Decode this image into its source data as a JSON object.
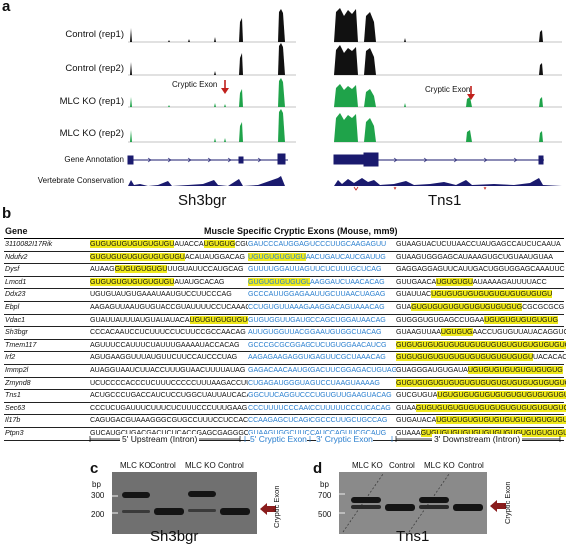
{
  "panel_a": {
    "letter": "a",
    "track_labels": [
      "Control (rep1)",
      "Control (rep2)",
      "MLC KO (rep1)",
      "MLC KO (rep2)",
      "Gene Annotation",
      "Vertebrate Conservation"
    ],
    "cryptic_label_left": "Cryptic Exon",
    "cryptic_label_right": "Cryptic Exon",
    "gene_left": "Sh3bgr",
    "gene_right": "Tns1",
    "colors": {
      "control": "#111111",
      "ko": "#1fa34a",
      "annotation": "#1a1a6e",
      "arrow": "#c0201c"
    }
  },
  "panel_b": {
    "letter": "b",
    "header_gene": "Gene",
    "title": "Muscle Specific Cryptic Exons (Mouse, mm9)",
    "rows": [
      {
        "gene": "3110082I17Rik",
        "up": "GUGUGUGUGUGUGUGUAUACCAUGUGUGCGUAG",
        "c5": "GAUCCCAUGGAGCUC...",
        "c3": "UCCCUUGCAAGAGUU",
        "dn": "GUAAGUACUCUUAACCUAUGAGCCAUCUCAAUA"
      },
      {
        "gene": "Ndufv2",
        "up": "GUGUGUGUGUGUGUGUGUACAUAUGGACAG",
        "c5": "UGUGUGUGUGUAUGU...",
        "c3": "ACUGAUCAUCGAUUG",
        "dn": "GUAAGUGGGAGCAUAAAGUGCUGUAAUGUAA"
      },
      {
        "gene": "Dysf",
        "up": "AUAAGGUGUGUGUGUUUGUAUUCCAUGCAG",
        "c5": "GUUUUGGAUUAGUAG...",
        "c3": "UUCUCUUUGCUCAG",
        "dn": "GAGGAGGAGUUCAUUGACUGGUGGAGCAAAUUC"
      },
      {
        "gene": "Lmcd1",
        "up": "GUGUGUGUGUGUGUGUAUAUGCACAG",
        "c5": "GUGUGUGUGUGUAAG...",
        "c3": "AAGGAUCUAACACAG",
        "dn": "GUUGAACAUGUGUGUAUAAAAGAUUUUACC"
      },
      {
        "gene": "Ddx23",
        "up": "UGUGUAUGUGAAAUAAUGUCCUUCCCAG",
        "c5": "GCCCAUUGGAGAAAU...",
        "c3": "AUUGCUUAACUAGAG",
        "dn": "GUAUUACUGUGUGUGUGUGUGUGUGUGUGU"
      },
      {
        "gene": "Ebpl",
        "up": "AAGAGUUAAUGUGUACCGUAUUUUCCUCAAAG",
        "c5": "CCUGUGUUAAAGAG...",
        "c3": "AAGGACAGUAAACAG",
        "dn": "GUAGUGUGUGUGUGUGUGUGUGUGCGCGCGCG"
      },
      {
        "gene": "Vdac1",
        "up": "GUAUUAUUUAUGUAUAUACAUGUGUGUGUGUGUG",
        "c5": "GUGUGGUUGAUGGAG...",
        "c3": "CCAGCUGGAUAACAG",
        "dn": "GUGGGUGUGAGCCUGAAUGUGUGUGUGUGUG"
      },
      {
        "gene": "Sh3bgr",
        "up": "CCCACAAUCCUCUUUCCUCUUCCGCCAACAG",
        "c5": "AUUGUGGUUACGGU...",
        "c3": "GAAUGUGGCUACAG",
        "dn": "GUAAGUUAAUGUGUGAACCUGUGUUAUACAGGUGUG"
      },
      {
        "gene": "Tmem117",
        "up": "AGUUUCCAUUUCUAUUUGAAAAUACCACAG",
        "c5": "GCCCGCGCGGAGGAG...",
        "c3": "CUCUGUGGAACAUCG",
        "dn": "GUGUGUGUGUGUGUGUGUGUGUGUGUGUGUGUGU"
      },
      {
        "gene": "Irf2",
        "up": "AGUGAAGGUUUAUGUUCUUCCAUCCCUAG",
        "c5": "AAGAGAAGAGGUGCU...",
        "c3": "GAGUUCGCUAAACAG",
        "dn": "GUGUGUGUGUGUGUGUGUGUGUGUGUUACACAC"
      },
      {
        "gene": "Immp2l",
        "up": "AUAGGUAAUCUUACCUUUGUAACUUUUAUAG",
        "c5": "GAGACAACAAUGGC...",
        "c3": "GACUUCGGAGACUGUAG",
        "dn": "GUAGGGAUGUGAUAUGUGUGUGUGUGUGUGUG"
      },
      {
        "gene": "Zmynd8",
        "up": "UCUCCCCACCCUCUUUCCCCCUUUAAGACCUU",
        "c5": "CUGAGAUGGGUACGC...",
        "c3": "GUCCUAAGUAAAAG",
        "dn": "GUGUGUGUGUGUGUGUGUGUGUGUGUGUGUGUGU"
      },
      {
        "gene": "Tns1",
        "up": "ACUGCCCUGACCAUCUCCUGGCUAUUAUCACAG",
        "c5": "GGCUUCAGGUCCUGC...",
        "c3": "CUGUGUUGAAGUACAG",
        "dn": "GUCGUGUAUGUGUGUGUGUGUGUGUGUGUGUGUG"
      },
      {
        "gene": "Sec63",
        "up": "CCCUCUGAUUUCUUUCUCUUUCCCUUUGAAG",
        "c5": "CCCUUUUCCCAACA...",
        "c3": "CCUUUUUCCCUCACAG",
        "dn": "GUAAGUGUGUGUGUGUGUGUGUGUGUGUGUGUG"
      },
      {
        "gene": "Il17b",
        "up": "CAGUGACGUAAAGGGCGUGCCUUUCCUCCACAG",
        "c5": "CCAAGAGCUCAGCAC...",
        "c3": "CGCCCUUGCUGCCAG",
        "dn": "GUGAUACAUGUGUGUGUGUGUGUGUGUGUGUGUG"
      },
      {
        "gene": "Ptpn3",
        "up": "GUCAUGCUGACGACUCUCACCGAGCGAGGGCGG",
        "c5": "GUAAGUGGCUUCCUU...",
        "c3": "CAUCCAGUUCGCAUG",
        "dn": "GUAAAGUGUGUGUGUGUGUGUGUGUGUGUGUGU"
      }
    ],
    "region_labels": [
      "5' Upstream (Intron)",
      "5' Cryptic Exon",
      "3' Cryptic Exon",
      "3' Downstream (Intron)"
    ]
  },
  "panel_c": {
    "letter": "c",
    "unit": "bp",
    "lane_labels": [
      "MLC KO",
      "Control",
      "MLC KO",
      "Control"
    ],
    "ladder": [
      "300",
      "200"
    ],
    "side_label": "Cryptic Exon",
    "gene": "Sh3bgr"
  },
  "panel_d": {
    "letter": "d",
    "unit": "bp",
    "lane_labels": [
      "MLC KO",
      "Control",
      "MLC KO",
      "Control"
    ],
    "ladder": [
      "700",
      "500"
    ],
    "side_label": "Cryptic Exon",
    "gene": "Tns1"
  }
}
